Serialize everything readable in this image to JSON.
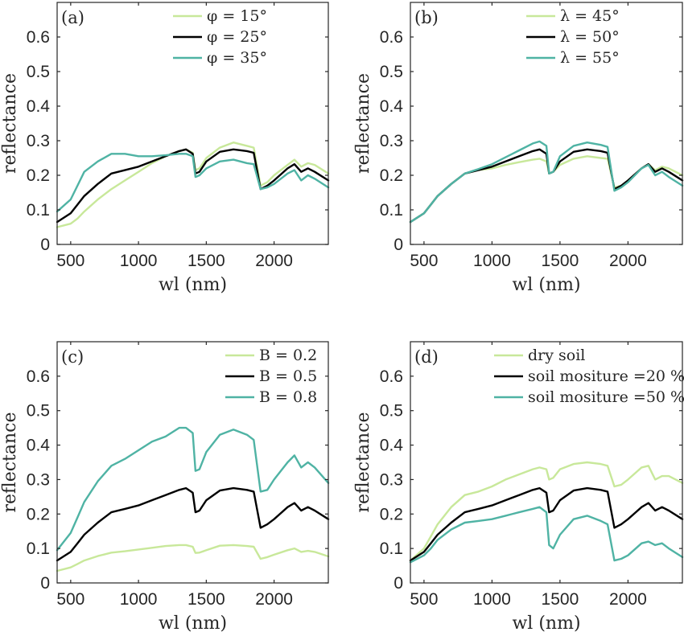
{
  "colors": {
    "light": "#c8e89a",
    "dark": "#000000",
    "teal": "#4fb3a4"
  },
  "chart_data": [
    {
      "type": "line",
      "panel_label": "(a)",
      "xlabel": "wl (nm)",
      "ylabel": "reflectance",
      "xlim": [
        400,
        2400
      ],
      "ylim": [
        0,
        0.7
      ],
      "xticks": [
        "500",
        "1000",
        "1500",
        "2000"
      ],
      "yticks": [
        "0",
        "0.1",
        "0.2",
        "0.3",
        "0.4",
        "0.5",
        "0.6"
      ],
      "legend_position": "top-center",
      "x": [
        400,
        500,
        550,
        600,
        700,
        800,
        900,
        1000,
        1100,
        1200,
        1300,
        1350,
        1400,
        1420,
        1450,
        1500,
        1600,
        1700,
        1800,
        1850,
        1900,
        1950,
        2000,
        2100,
        2150,
        2200,
        2250,
        2300,
        2400
      ],
      "series": [
        {
          "name": "φ = 15°",
          "color_key": "light",
          "values": [
            0.05,
            0.06,
            0.075,
            0.095,
            0.13,
            0.16,
            0.185,
            0.21,
            0.235,
            0.255,
            0.27,
            0.275,
            0.265,
            0.215,
            0.22,
            0.25,
            0.28,
            0.295,
            0.285,
            0.28,
            0.17,
            0.18,
            0.2,
            0.23,
            0.245,
            0.225,
            0.235,
            0.23,
            0.205
          ]
        },
        {
          "name": "φ = 25°",
          "color_key": "dark",
          "values": [
            0.065,
            0.09,
            0.115,
            0.14,
            0.175,
            0.205,
            0.215,
            0.225,
            0.24,
            0.255,
            0.27,
            0.275,
            0.262,
            0.205,
            0.21,
            0.24,
            0.268,
            0.275,
            0.27,
            0.265,
            0.16,
            0.17,
            0.185,
            0.22,
            0.232,
            0.21,
            0.22,
            0.21,
            0.185
          ]
        },
        {
          "name": "φ = 35°",
          "color_key": "teal",
          "values": [
            0.095,
            0.13,
            0.17,
            0.21,
            0.24,
            0.262,
            0.262,
            0.255,
            0.255,
            0.258,
            0.262,
            0.262,
            0.255,
            0.195,
            0.2,
            0.22,
            0.24,
            0.245,
            0.235,
            0.232,
            0.16,
            0.165,
            0.175,
            0.205,
            0.215,
            0.185,
            0.2,
            0.19,
            0.165
          ]
        }
      ]
    },
    {
      "type": "line",
      "panel_label": "(b)",
      "xlabel": "wl (nm)",
      "ylabel": "reflectance",
      "xlim": [
        400,
        2400
      ],
      "ylim": [
        0,
        0.7
      ],
      "xticks": [
        "500",
        "1000",
        "1500",
        "2000"
      ],
      "yticks": [
        "0",
        "0.1",
        "0.2",
        "0.3",
        "0.4",
        "0.5",
        "0.6"
      ],
      "legend_position": "top-center",
      "x": [
        400,
        500,
        550,
        600,
        700,
        800,
        900,
        1000,
        1100,
        1200,
        1300,
        1350,
        1400,
        1420,
        1450,
        1500,
        1600,
        1700,
        1800,
        1850,
        1900,
        1950,
        2000,
        2100,
        2150,
        2200,
        2250,
        2300,
        2400
      ],
      "series": [
        {
          "name": "λ = 45°",
          "color_key": "light",
          "values": [
            0.065,
            0.09,
            0.115,
            0.14,
            0.175,
            0.205,
            0.215,
            0.22,
            0.23,
            0.238,
            0.245,
            0.248,
            0.24,
            0.205,
            0.21,
            0.23,
            0.248,
            0.255,
            0.25,
            0.248,
            0.165,
            0.17,
            0.185,
            0.22,
            0.232,
            0.215,
            0.225,
            0.22,
            0.2
          ]
        },
        {
          "name": "λ = 50°",
          "color_key": "dark",
          "values": [
            0.065,
            0.09,
            0.115,
            0.14,
            0.175,
            0.205,
            0.215,
            0.225,
            0.24,
            0.255,
            0.27,
            0.275,
            0.262,
            0.205,
            0.21,
            0.24,
            0.268,
            0.275,
            0.27,
            0.265,
            0.16,
            0.17,
            0.185,
            0.22,
            0.232,
            0.21,
            0.22,
            0.21,
            0.185
          ]
        },
        {
          "name": "λ = 55°",
          "color_key": "teal",
          "values": [
            0.065,
            0.09,
            0.115,
            0.14,
            0.175,
            0.205,
            0.218,
            0.232,
            0.252,
            0.272,
            0.292,
            0.298,
            0.285,
            0.205,
            0.21,
            0.255,
            0.285,
            0.295,
            0.288,
            0.282,
            0.155,
            0.165,
            0.18,
            0.22,
            0.23,
            0.2,
            0.21,
            0.195,
            0.17
          ]
        }
      ]
    },
    {
      "type": "line",
      "panel_label": "(c)",
      "xlabel": "wl (nm)",
      "ylabel": "reflectance",
      "xlim": [
        400,
        2400
      ],
      "ylim": [
        0,
        0.7
      ],
      "xticks": [
        "500",
        "1000",
        "1500",
        "2000"
      ],
      "yticks": [
        "0",
        "0.1",
        "0.2",
        "0.3",
        "0.4",
        "0.5",
        "0.6"
      ],
      "legend_position": "top-right",
      "x": [
        400,
        500,
        550,
        600,
        700,
        800,
        900,
        1000,
        1100,
        1200,
        1300,
        1350,
        1400,
        1420,
        1450,
        1500,
        1600,
        1700,
        1800,
        1850,
        1900,
        1950,
        2000,
        2100,
        2150,
        2200,
        2250,
        2300,
        2400
      ],
      "series": [
        {
          "name": "B = 0.2",
          "color_key": "light",
          "values": [
            0.035,
            0.045,
            0.055,
            0.065,
            0.078,
            0.088,
            0.092,
            0.097,
            0.102,
            0.107,
            0.11,
            0.11,
            0.105,
            0.087,
            0.088,
            0.095,
            0.108,
            0.11,
            0.107,
            0.105,
            0.07,
            0.075,
            0.082,
            0.095,
            0.1,
            0.09,
            0.093,
            0.09,
            0.077
          ]
        },
        {
          "name": "B = 0.5",
          "color_key": "dark",
          "values": [
            0.065,
            0.09,
            0.115,
            0.14,
            0.175,
            0.205,
            0.215,
            0.225,
            0.24,
            0.255,
            0.27,
            0.275,
            0.262,
            0.205,
            0.21,
            0.24,
            0.268,
            0.275,
            0.27,
            0.265,
            0.16,
            0.17,
            0.185,
            0.22,
            0.232,
            0.21,
            0.22,
            0.21,
            0.185
          ]
        },
        {
          "name": "B = 0.8",
          "color_key": "teal",
          "values": [
            0.095,
            0.145,
            0.19,
            0.235,
            0.295,
            0.34,
            0.36,
            0.385,
            0.41,
            0.425,
            0.45,
            0.45,
            0.435,
            0.325,
            0.33,
            0.38,
            0.43,
            0.445,
            0.43,
            0.415,
            0.265,
            0.27,
            0.3,
            0.35,
            0.37,
            0.335,
            0.35,
            0.335,
            0.29
          ]
        }
      ]
    },
    {
      "type": "line",
      "panel_label": "(d)",
      "xlabel": "wl (nm)",
      "ylabel": "reflectance",
      "xlim": [
        400,
        2400
      ],
      "ylim": [
        0,
        0.7
      ],
      "xticks": [
        "500",
        "1000",
        "1500",
        "2000"
      ],
      "yticks": [
        "0",
        "0.1",
        "0.2",
        "0.3",
        "0.4",
        "0.5",
        "0.6"
      ],
      "legend_position": "top-right",
      "x": [
        400,
        500,
        550,
        600,
        700,
        800,
        900,
        1000,
        1100,
        1200,
        1300,
        1350,
        1400,
        1420,
        1450,
        1500,
        1600,
        1700,
        1800,
        1850,
        1900,
        1950,
        2000,
        2100,
        2150,
        2200,
        2250,
        2300,
        2400
      ],
      "series": [
        {
          "name": "dry soil",
          "color_key": "light",
          "values": [
            0.065,
            0.1,
            0.135,
            0.17,
            0.22,
            0.255,
            0.265,
            0.28,
            0.3,
            0.315,
            0.33,
            0.335,
            0.33,
            0.3,
            0.305,
            0.33,
            0.345,
            0.35,
            0.345,
            0.34,
            0.28,
            0.285,
            0.3,
            0.335,
            0.34,
            0.3,
            0.31,
            0.31,
            0.29
          ]
        },
        {
          "name": "soil mositure =20 %",
          "color_key": "dark",
          "values": [
            0.065,
            0.09,
            0.115,
            0.14,
            0.175,
            0.205,
            0.215,
            0.225,
            0.24,
            0.255,
            0.27,
            0.275,
            0.262,
            0.205,
            0.21,
            0.24,
            0.268,
            0.275,
            0.27,
            0.265,
            0.16,
            0.17,
            0.185,
            0.22,
            0.232,
            0.21,
            0.22,
            0.21,
            0.185
          ]
        },
        {
          "name": "soil mositure =50 %",
          "color_key": "teal",
          "values": [
            0.06,
            0.08,
            0.1,
            0.125,
            0.155,
            0.175,
            0.18,
            0.185,
            0.195,
            0.205,
            0.215,
            0.22,
            0.205,
            0.11,
            0.1,
            0.14,
            0.185,
            0.195,
            0.18,
            0.17,
            0.065,
            0.07,
            0.08,
            0.115,
            0.12,
            0.11,
            0.115,
            0.1,
            0.075
          ]
        }
      ]
    }
  ]
}
